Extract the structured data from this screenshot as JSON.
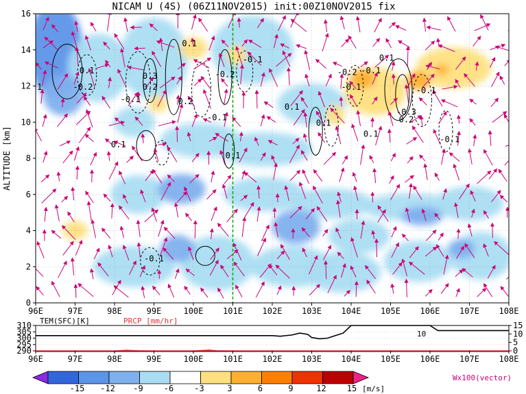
{
  "title": "NICAM U (4S) (06Z11NOV2015) init:00Z10NOV2015 fix",
  "colors": {
    "shading": [
      "#8a2be2",
      "#3366dd",
      "#5c95e8",
      "#7fb0ee",
      "#aaddf2",
      "#ffffff",
      "#ffe080",
      "#ffb030",
      "#ff8000",
      "#ee3300",
      "#bb0000",
      "#ee2288"
    ],
    "vector": "#cc0077",
    "marker": "#00aa00",
    "precip_axis": "#dd3333"
  },
  "chart_data": [
    {
      "type": "heatmap",
      "title": "NICAM U (4S) (06Z11NOV2015) init:00Z10NOV2015 fix",
      "xlabel": "",
      "ylabel": "ALTITUDE [km]",
      "xlim": [
        96,
        108
      ],
      "ylim": [
        0,
        16
      ],
      "x_ticks": [
        "96E",
        "97E",
        "98E",
        "99E",
        "100E",
        "101E",
        "102E",
        "103E",
        "104E",
        "105E",
        "106E",
        "107E",
        "108E"
      ],
      "y_ticks": [
        "0",
        "2",
        "4",
        "6",
        "8",
        "10",
        "12",
        "14",
        "16"
      ],
      "grid": true,
      "marker_longitude": 101,
      "contour_labels": [
        {
          "x": 96.1,
          "y": 11.8,
          "text": "1"
        },
        {
          "x": 97.3,
          "y": 12.7,
          "text": "0.1"
        },
        {
          "x": 97.2,
          "y": 11.8,
          "text": "-0.2"
        },
        {
          "x": 98.4,
          "y": 11.1,
          "text": "-0.1"
        },
        {
          "x": 98.9,
          "y": 12.4,
          "text": "0.3"
        },
        {
          "x": 98.9,
          "y": 11.8,
          "text": "0.2"
        },
        {
          "x": 99.8,
          "y": 11.0,
          "text": "0.2"
        },
        {
          "x": 99.9,
          "y": 14.2,
          "text": "0.1"
        },
        {
          "x": 100.6,
          "y": 10.1,
          "text": "-0.1"
        },
        {
          "x": 100.8,
          "y": 12.5,
          "text": "-0.2"
        },
        {
          "x": 101.5,
          "y": 13.3,
          "text": "-0.1"
        },
        {
          "x": 101.0,
          "y": 8.0,
          "text": "0.1"
        },
        {
          "x": 98.1,
          "y": 8.6,
          "text": "0.1"
        },
        {
          "x": 99.0,
          "y": 2.3,
          "text": "-0.1"
        },
        {
          "x": 102.5,
          "y": 10.7,
          "text": "0.1"
        },
        {
          "x": 103.3,
          "y": 9.8,
          "text": "0.1"
        },
        {
          "x": 103.9,
          "y": 12.6,
          "text": "-0.2"
        },
        {
          "x": 104.0,
          "y": 11.8,
          "text": "-0.1"
        },
        {
          "x": 104.5,
          "y": 12.7,
          "text": "-0.1"
        },
        {
          "x": 104.9,
          "y": 13.4,
          "text": "0.1"
        },
        {
          "x": 105.4,
          "y": 10.4,
          "text": "-0.3"
        },
        {
          "x": 105.4,
          "y": 10.0,
          "text": "0.2"
        },
        {
          "x": 104.5,
          "y": 9.2,
          "text": "0.1"
        },
        {
          "x": 105.9,
          "y": 11.6,
          "text": "-0.1"
        },
        {
          "x": 106.5,
          "y": 8.9,
          "text": "-0.1"
        }
      ]
    },
    {
      "type": "line",
      "xlim": [
        96,
        108
      ],
      "ylim": [
        290,
        310
      ],
      "y_ticks": [
        "290",
        "295",
        "300",
        "305",
        "310"
      ],
      "right_ticks": [
        "0",
        "5",
        "10",
        "15"
      ],
      "left_label": "TEM(SFC)[K]",
      "right_label": "PRCP [mm/hr]",
      "x_ticks": [
        "96E",
        "97E",
        "98E",
        "99E",
        "100E",
        "101E",
        "102E",
        "103E",
        "104E",
        "105E",
        "106E",
        "107E",
        "108E"
      ],
      "series": [
        {
          "name": "TEM(SFC)[K]",
          "x": [
            96,
            97,
            98,
            99,
            100,
            101,
            102,
            102.2,
            102.5,
            102.7,
            102.9,
            103.0,
            103.2,
            103.4,
            103.6,
            103.8,
            104,
            106,
            106.2,
            108
          ],
          "y": [
            302,
            302,
            302,
            302,
            302,
            302,
            302,
            301.5,
            302.5,
            304,
            303,
            300.5,
            299.5,
            300,
            302,
            304,
            310,
            310,
            306,
            306
          ]
        },
        {
          "name": "PRCP [mm/hr]",
          "x": [
            96,
            98,
            98.3,
            98.6,
            99,
            100,
            100.4,
            100.6,
            101,
            102,
            108
          ],
          "y": [
            0,
            0,
            0.4,
            0.1,
            0,
            0,
            0.5,
            0.1,
            0,
            0,
            0
          ]
        }
      ],
      "labels": [
        "10"
      ]
    },
    {
      "type": "colorbar",
      "ticks": [
        "-15",
        "-12",
        "-9",
        "-6",
        "-3",
        "3",
        "6",
        "9",
        "12",
        "15"
      ],
      "unit": "[m/s]",
      "note": "Wx100(vector)"
    }
  ]
}
